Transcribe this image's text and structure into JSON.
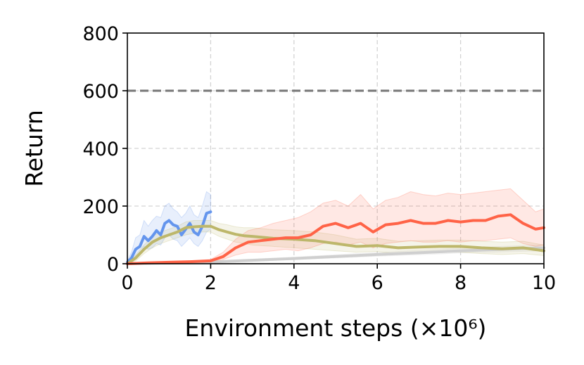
{
  "chart_data": {
    "type": "line",
    "xlabel": "Environment steps (×10⁶)",
    "ylabel": "Return",
    "xlim": [
      0,
      10
    ],
    "ylim": [
      0,
      800
    ],
    "xticks": [
      0,
      2,
      4,
      6,
      8,
      10
    ],
    "yticks": [
      0,
      200,
      400,
      600,
      800
    ],
    "grid": true,
    "reference_line": {
      "y": 600,
      "style": "dashed",
      "color": "#777777"
    },
    "series": [
      {
        "color": "#cfcfcf",
        "x": [
          0,
          1,
          2,
          3,
          4,
          5,
          6,
          7,
          8,
          9,
          10
        ],
        "y": [
          0,
          3,
          6,
          12,
          18,
          25,
          32,
          38,
          45,
          50,
          55
        ],
        "band_low": [
          0,
          2,
          4,
          9,
          14,
          20,
          26,
          31,
          37,
          41,
          45
        ],
        "band_high": [
          0,
          5,
          9,
          16,
          23,
          31,
          39,
          46,
          54,
          60,
          66
        ]
      },
      {
        "color": "#6495ed",
        "x": [
          0,
          0.1,
          0.2,
          0.3,
          0.4,
          0.5,
          0.6,
          0.7,
          0.8,
          0.9,
          1.0,
          1.1,
          1.2,
          1.3,
          1.4,
          1.5,
          1.6,
          1.7,
          1.8,
          1.9,
          2.0
        ],
        "y": [
          5,
          20,
          50,
          60,
          95,
          80,
          95,
          115,
          100,
          140,
          150,
          135,
          130,
          100,
          120,
          140,
          110,
          100,
          130,
          175,
          180
        ],
        "band_low": [
          0,
          5,
          25,
          35,
          60,
          50,
          55,
          70,
          65,
          90,
          100,
          85,
          80,
          60,
          75,
          90,
          70,
          60,
          80,
          110,
          120
        ],
        "band_high": [
          10,
          40,
          90,
          100,
          150,
          130,
          150,
          165,
          160,
          200,
          210,
          190,
          180,
          160,
          175,
          200,
          170,
          160,
          200,
          250,
          240
        ]
      },
      {
        "color": "#bdb76b",
        "x": [
          0,
          0.2,
          0.4,
          0.6,
          0.8,
          1.0,
          1.2,
          1.4,
          1.6,
          1.8,
          2.0,
          2.2,
          2.4,
          2.6,
          2.8,
          3.0,
          3.5,
          4.0,
          4.5,
          5.0,
          5.5,
          6.0,
          6.5,
          7.0,
          7.5,
          8.0,
          8.5,
          9.0,
          9.5,
          10.0
        ],
        "y": [
          0,
          20,
          50,
          75,
          90,
          100,
          110,
          125,
          128,
          130,
          130,
          118,
          110,
          102,
          97,
          95,
          88,
          85,
          80,
          70,
          60,
          63,
          55,
          58,
          60,
          60,
          55,
          52,
          55,
          45
        ],
        "band_low": [
          0,
          10,
          35,
          55,
          70,
          80,
          90,
          100,
          105,
          110,
          110,
          95,
          85,
          75,
          70,
          65,
          60,
          55,
          50,
          45,
          40,
          42,
          35,
          38,
          40,
          40,
          35,
          32,
          35,
          28
        ],
        "band_high": [
          0,
          30,
          65,
          95,
          110,
          120,
          130,
          145,
          150,
          150,
          150,
          140,
          135,
          128,
          125,
          125,
          118,
          115,
          110,
          100,
          85,
          88,
          78,
          80,
          82,
          82,
          78,
          75,
          78,
          65
        ]
      },
      {
        "color": "#ff6347",
        "x": [
          0,
          0.5,
          1.0,
          1.5,
          2.0,
          2.3,
          2.6,
          2.9,
          3.2,
          3.5,
          3.8,
          4.1,
          4.4,
          4.7,
          5.0,
          5.3,
          5.6,
          5.9,
          6.2,
          6.5,
          6.8,
          7.1,
          7.4,
          7.7,
          8.0,
          8.3,
          8.6,
          8.9,
          9.2,
          9.5,
          9.8,
          10.0
        ],
        "y": [
          0,
          3,
          5,
          7,
          10,
          25,
          55,
          75,
          80,
          85,
          90,
          90,
          100,
          130,
          140,
          125,
          140,
          110,
          135,
          140,
          150,
          140,
          140,
          150,
          145,
          150,
          150,
          165,
          170,
          140,
          120,
          125
        ],
        "band_low": [
          0,
          2,
          3,
          5,
          7,
          15,
          30,
          40,
          40,
          45,
          50,
          45,
          55,
          70,
          75,
          65,
          75,
          55,
          70,
          75,
          80,
          75,
          75,
          80,
          75,
          80,
          80,
          85,
          90,
          70,
          60,
          65
        ],
        "band_high": [
          0,
          5,
          8,
          10,
          15,
          40,
          85,
          115,
          125,
          140,
          150,
          160,
          180,
          210,
          220,
          200,
          240,
          190,
          220,
          230,
          250,
          240,
          235,
          245,
          240,
          245,
          250,
          255,
          260,
          220,
          180,
          190
        ]
      }
    ]
  }
}
